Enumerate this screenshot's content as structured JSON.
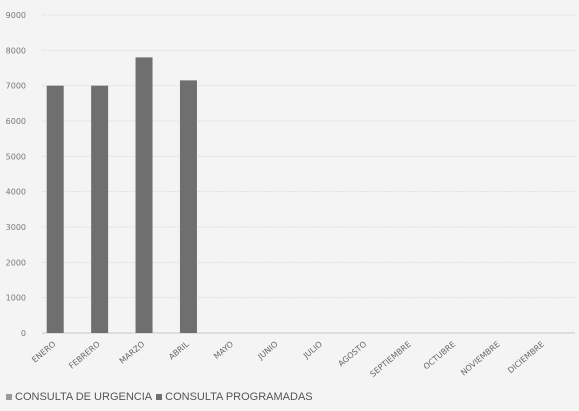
{
  "chart_data": {
    "type": "bar",
    "categories": [
      "ENERO",
      "FEBRERO",
      "MARZO",
      "ABRIL",
      "MAYO",
      "JUNIO",
      "JULIO",
      "AGOSTO",
      "SEPTIEMBRE",
      "OCTUBRE",
      "NOVIEMBRE",
      "DICIEMBRE"
    ],
    "series": [
      {
        "name": "CONSULTA DE URGENCIA",
        "values": [
          0,
          0,
          0,
          0,
          0,
          0,
          0,
          0,
          0,
          0,
          0,
          0
        ],
        "color": "#9a9a9a"
      },
      {
        "name": "CONSULTA PROGRAMADAS",
        "values": [
          7000,
          7000,
          7800,
          7150,
          null,
          null,
          null,
          null,
          null,
          null,
          null,
          null
        ],
        "color": "#6f6f6f"
      }
    ],
    "yticks": [
      "0",
      "1000",
      "2000",
      "3000",
      "4000",
      "5000",
      "6000",
      "7000",
      "8000",
      "9000"
    ],
    "ylim": [
      0,
      9000
    ],
    "grid": true,
    "legend_position": "bottom-left",
    "title": "",
    "xlabel": "",
    "ylabel": ""
  }
}
